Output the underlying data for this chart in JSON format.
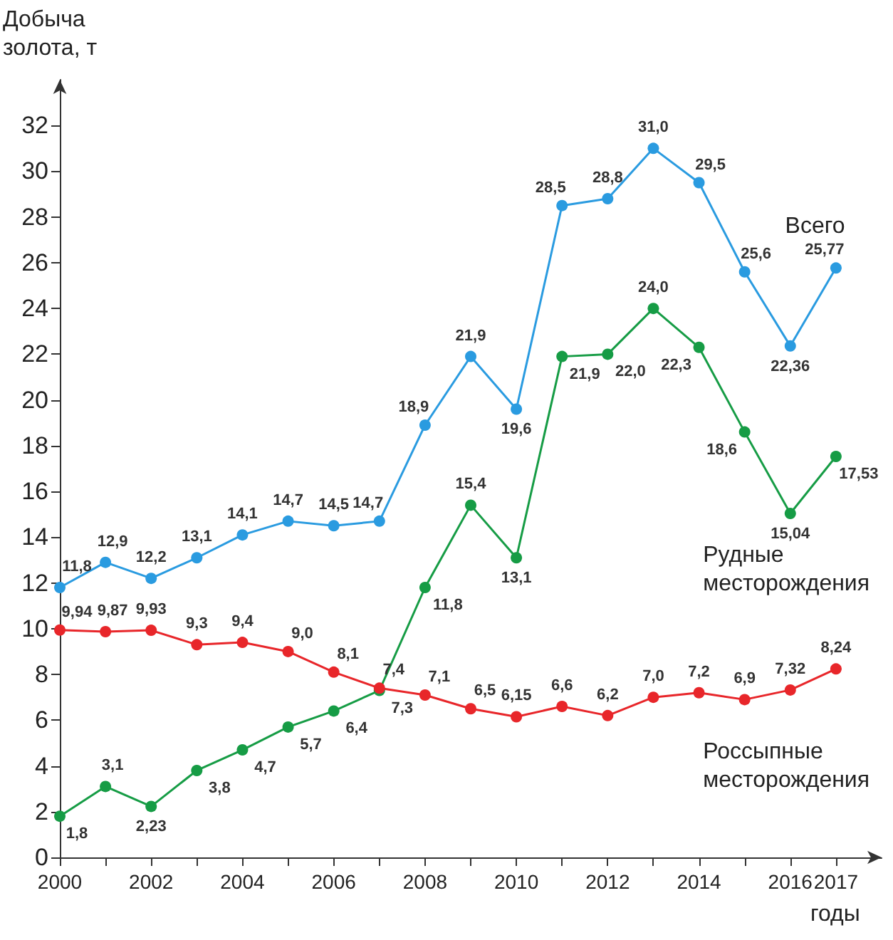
{
  "chart_data": {
    "type": "line",
    "ylabel": "Добыча золота, т",
    "xlabel": "годы",
    "x": [
      2000,
      2001,
      2002,
      2003,
      2004,
      2005,
      2006,
      2007,
      2008,
      2009,
      2010,
      2011,
      2012,
      2013,
      2014,
      2015,
      2016,
      2017
    ],
    "series": [
      {
        "name": "Всего",
        "color": "#2a9be0",
        "values": [
          11.8,
          12.9,
          12.2,
          13.1,
          14.1,
          14.7,
          14.5,
          14.7,
          18.9,
          21.9,
          19.6,
          28.5,
          28.8,
          31.0,
          29.5,
          25.6,
          22.36,
          25.77
        ],
        "value_labels": [
          "11,8",
          "12,9",
          "12,2",
          "13,1",
          "14,1",
          "14,7",
          "14,5",
          "14,7",
          "18,9",
          "21,9",
          "19,6",
          "28,5",
          "28,8",
          "31,0",
          "29,5",
          "25,6",
          "22,36",
          "25,77"
        ]
      },
      {
        "name": "Рудные месторождения",
        "color": "#169c45",
        "values": [
          1.8,
          3.1,
          2.23,
          3.8,
          4.7,
          5.7,
          6.4,
          7.3,
          11.8,
          15.4,
          13.1,
          21.9,
          22.0,
          24.0,
          22.3,
          18.6,
          15.04,
          17.53
        ],
        "value_labels": [
          "1,8",
          "3,1",
          "2,23",
          "3,8",
          "4,7",
          "5,7",
          "6,4",
          "7,3",
          "11,8",
          "15,4",
          "13,1",
          "21,9",
          "22,0",
          "24,0",
          "22,3",
          "18,6",
          "15,04",
          "17,53"
        ]
      },
      {
        "name": "Россыпные месторождения",
        "color": "#e8262a",
        "values": [
          9.94,
          9.87,
          9.93,
          9.3,
          9.4,
          9.0,
          8.1,
          7.4,
          7.1,
          6.5,
          6.15,
          6.6,
          6.2,
          7.0,
          7.2,
          6.9,
          7.32,
          8.24
        ],
        "value_labels": [
          "9,94",
          "9,87",
          "9,93",
          "9,3",
          "9,4",
          "9,0",
          "8,1",
          "7,4",
          "7,1",
          "6,5",
          "6,15",
          "6,6",
          "6,2",
          "7,0",
          "7,2",
          "6,9",
          "7,32",
          "8,24"
        ]
      }
    ],
    "xlim": [
      2000,
      2018
    ],
    "xticks": [
      2000,
      {
        "value": 2001,
        "label": null
      },
      2002,
      {
        "value": 2003,
        "label": null
      },
      2004,
      {
        "value": 2005,
        "label": null
      },
      2006,
      {
        "value": 2007,
        "label": null
      },
      2008,
      {
        "value": 2009,
        "label": null
      },
      2010,
      {
        "value": 2011,
        "label": null
      },
      2012,
      {
        "value": 2013,
        "label": null
      },
      2014,
      {
        "value": 2015,
        "label": null
      },
      2016,
      2017
    ],
    "ylim": [
      0,
      34
    ],
    "yticks": [
      0,
      2,
      4,
      6,
      8,
      10,
      12,
      14,
      16,
      18,
      20,
      22,
      24,
      26,
      28,
      30,
      32
    ],
    "grid": false,
    "legend": false,
    "marker": "circle",
    "line_style": "solid"
  }
}
